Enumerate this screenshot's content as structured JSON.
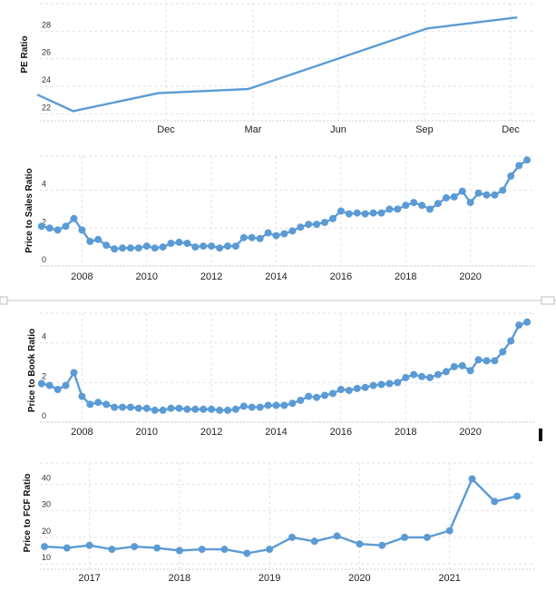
{
  "colors": {
    "series": "#5b9bd5",
    "grid": "#e2e2e2"
  },
  "icons": {
    "divider_handle_left": "resize-handle-icon",
    "divider_handle_right": "resize-handle-icon",
    "scroll_marker": "scroll-marker-icon"
  },
  "chart_data": [
    {
      "type": "line",
      "ylabel": "PE Ratio",
      "ylim": [
        21.5,
        30
      ],
      "yticks": [
        22,
        24,
        26,
        28
      ],
      "xtick_labels": [
        "Dec",
        "Mar",
        "Jun",
        "Sep",
        "Dec"
      ],
      "grid": true,
      "markers": false,
      "x": [
        0.0,
        0.4,
        1.35,
        2.35,
        3.35,
        4.35,
        5.35
      ],
      "y": [
        23.4,
        22.2,
        23.5,
        23.8,
        26.0,
        28.2,
        29.0
      ]
    },
    {
      "type": "line",
      "ylabel": "Price to Sales Ratio",
      "ylim": [
        0,
        5.8
      ],
      "yticks": [
        0,
        2,
        4
      ],
      "xtick_labels": [
        "2008",
        "2010",
        "2012",
        "2014",
        "2016",
        "2018",
        "2020"
      ],
      "xtick_values": [
        2008,
        2010,
        2012,
        2014,
        2016,
        2018,
        2020
      ],
      "xlim": [
        2006.7,
        2022
      ],
      "grid": true,
      "markers": true,
      "x": [
        2006.75,
        2007.0,
        2007.25,
        2007.5,
        2007.75,
        2008.0,
        2008.25,
        2008.5,
        2008.75,
        2009.0,
        2009.25,
        2009.5,
        2009.75,
        2010.0,
        2010.25,
        2010.5,
        2010.75,
        2011.0,
        2011.25,
        2011.5,
        2011.75,
        2012.0,
        2012.25,
        2012.5,
        2012.75,
        2013.0,
        2013.25,
        2013.5,
        2013.75,
        2014.0,
        2014.25,
        2014.5,
        2014.75,
        2015.0,
        2015.25,
        2015.5,
        2015.75,
        2016.0,
        2016.25,
        2016.5,
        2016.75,
        2017.0,
        2017.25,
        2017.5,
        2017.75,
        2018.0,
        2018.25,
        2018.5,
        2018.75,
        2019.0,
        2019.25,
        2019.5,
        2019.75,
        2020.0,
        2020.25,
        2020.5,
        2020.75,
        2021.0,
        2021.25,
        2021.5,
        2021.75
      ],
      "y": [
        2.1,
        2.0,
        1.9,
        2.1,
        2.5,
        1.9,
        1.3,
        1.4,
        1.1,
        0.9,
        0.95,
        0.95,
        0.95,
        1.05,
        0.95,
        1.0,
        1.2,
        1.25,
        1.2,
        1.0,
        1.05,
        1.05,
        0.95,
        1.05,
        1.05,
        1.5,
        1.5,
        1.45,
        1.75,
        1.6,
        1.7,
        1.85,
        2.05,
        2.2,
        2.2,
        2.3,
        2.5,
        2.9,
        2.75,
        2.8,
        2.75,
        2.8,
        2.8,
        3.0,
        3.0,
        3.2,
        3.35,
        3.2,
        3.0,
        3.3,
        3.6,
        3.65,
        3.95,
        3.35,
        3.85,
        3.75,
        3.75,
        4.0,
        4.75,
        5.3,
        5.6
      ]
    },
    {
      "type": "line",
      "ylabel": "Price to Book Ratio",
      "ylim": [
        0,
        5.5
      ],
      "yticks": [
        0,
        2,
        4
      ],
      "xtick_labels": [
        "2008",
        "2010",
        "2012",
        "2014",
        "2016",
        "2018",
        "2020"
      ],
      "xtick_values": [
        2008,
        2010,
        2012,
        2014,
        2016,
        2018,
        2020
      ],
      "xlim": [
        2006.7,
        2022
      ],
      "grid": true,
      "markers": true,
      "x": [
        2006.75,
        2007.0,
        2007.25,
        2007.5,
        2007.75,
        2008.0,
        2008.25,
        2008.5,
        2008.75,
        2009.0,
        2009.25,
        2009.5,
        2009.75,
        2010.0,
        2010.25,
        2010.5,
        2010.75,
        2011.0,
        2011.25,
        2011.5,
        2011.75,
        2012.0,
        2012.25,
        2012.5,
        2012.75,
        2013.0,
        2013.25,
        2013.5,
        2013.75,
        2014.0,
        2014.25,
        2014.5,
        2014.75,
        2015.0,
        2015.25,
        2015.5,
        2015.75,
        2016.0,
        2016.25,
        2016.5,
        2016.75,
        2017.0,
        2017.25,
        2017.5,
        2017.75,
        2018.0,
        2018.25,
        2018.5,
        2018.75,
        2019.0,
        2019.25,
        2019.5,
        2019.75,
        2020.0,
        2020.25,
        2020.5,
        2020.75,
        2021.0,
        2021.25,
        2021.5,
        2021.75
      ],
      "y": [
        1.95,
        1.85,
        1.65,
        1.85,
        2.5,
        1.3,
        0.9,
        1.0,
        0.9,
        0.75,
        0.75,
        0.75,
        0.7,
        0.7,
        0.6,
        0.6,
        0.7,
        0.7,
        0.65,
        0.65,
        0.65,
        0.65,
        0.6,
        0.6,
        0.65,
        0.8,
        0.75,
        0.75,
        0.85,
        0.85,
        0.85,
        0.95,
        1.1,
        1.3,
        1.25,
        1.35,
        1.45,
        1.65,
        1.6,
        1.7,
        1.75,
        1.85,
        1.9,
        1.95,
        2.0,
        2.25,
        2.4,
        2.3,
        2.25,
        2.4,
        2.55,
        2.8,
        2.85,
        2.6,
        3.15,
        3.1,
        3.1,
        3.55,
        4.1,
        4.9,
        5.05
      ]
    },
    {
      "type": "line",
      "ylabel": "Price to FCF Ratio",
      "ylim": [
        8,
        48
      ],
      "yticks": [
        10,
        20,
        30,
        40
      ],
      "xtick_labels": [
        "2017",
        "2018",
        "2019",
        "2020",
        "2021"
      ],
      "xtick_values": [
        2017,
        2018,
        2019,
        2020,
        2021
      ],
      "xlim": [
        2016.45,
        2021.95
      ],
      "grid": true,
      "markers": true,
      "x": [
        2016.5,
        2016.75,
        2017.0,
        2017.25,
        2017.5,
        2017.75,
        2018.0,
        2018.25,
        2018.5,
        2018.75,
        2019.0,
        2019.25,
        2019.5,
        2019.75,
        2020.0,
        2020.25,
        2020.5,
        2020.75,
        2021.0,
        2021.25,
        2021.5,
        2021.75
      ],
      "y": [
        16.5,
        16.0,
        17.0,
        15.5,
        16.5,
        16.0,
        15.0,
        15.5,
        15.5,
        14.0,
        15.5,
        20.0,
        18.5,
        20.5,
        17.5,
        17.0,
        20.0,
        20.0,
        22.5,
        42.0,
        33.5,
        35.5
      ]
    }
  ]
}
